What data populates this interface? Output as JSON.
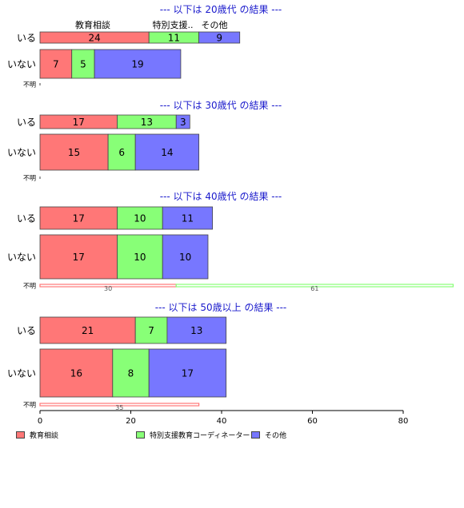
{
  "chart_data": {
    "type": "bar",
    "orientation": "horizontal",
    "stacked": true,
    "xlim": [
      0,
      80
    ],
    "xticks": [
      "0",
      "20",
      "40",
      "60",
      "80"
    ],
    "category_header": [
      "教育相談",
      "特別支援..",
      "その他"
    ],
    "colors": [
      "#ff7777",
      "#88ff77",
      "#7777ff"
    ],
    "legend": {
      "placement": "bottom",
      "labels": [
        "教育相談",
        "特別支援教育コーディネーター",
        "その他"
      ]
    },
    "panels": [
      {
        "title": "--- 以下は 20歳代 の結果 ---",
        "rows": [
          {
            "label": "いる",
            "values": [
              24,
              11,
              9
            ]
          },
          {
            "label": "いない",
            "values": [
              7,
              5,
              19
            ]
          },
          {
            "label": "不明",
            "values": [
              0,
              0,
              0
            ]
          }
        ]
      },
      {
        "title": "--- 以下は 30歳代 の結果 ---",
        "rows": [
          {
            "label": "いる",
            "values": [
              17,
              13,
              3
            ]
          },
          {
            "label": "いない",
            "values": [
              15,
              6,
              14
            ]
          },
          {
            "label": "不明",
            "values": [
              0,
              0,
              0
            ]
          }
        ]
      },
      {
        "title": "--- 以下は 40歳代 の結果 ---",
        "rows": [
          {
            "label": "いる",
            "values": [
              17,
              10,
              11
            ]
          },
          {
            "label": "いない",
            "values": [
              17,
              10,
              10
            ]
          },
          {
            "label": "不明",
            "values": [
              30,
              61,
              0
            ]
          }
        ]
      },
      {
        "title": "--- 以下は 50歳以上 の結果 ---",
        "rows": [
          {
            "label": "いる",
            "values": [
              21,
              7,
              13
            ]
          },
          {
            "label": "いない",
            "values": [
              16,
              8,
              17
            ]
          },
          {
            "label": "不明",
            "values": [
              35,
              0,
              0
            ]
          }
        ]
      }
    ]
  }
}
